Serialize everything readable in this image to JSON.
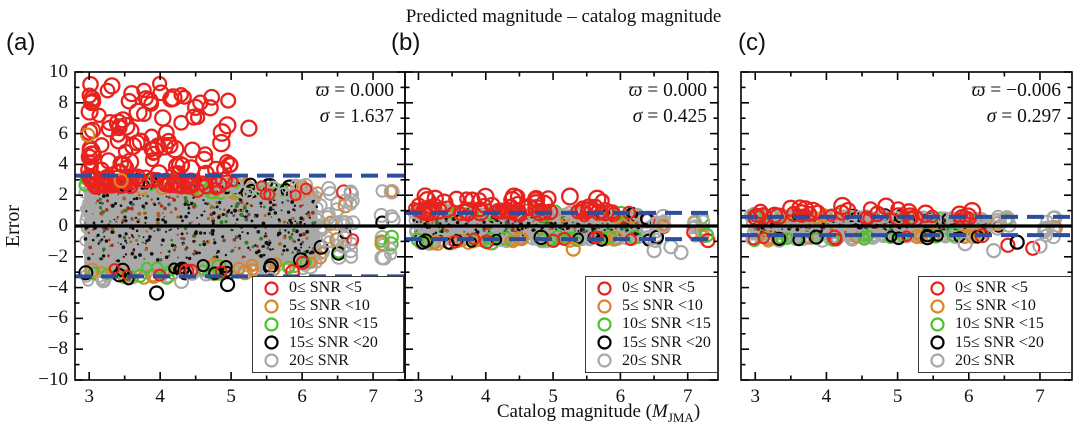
{
  "figure_title": "Predicted magnitude – catalog magnitude",
  "axis": {
    "ylabel": "Error",
    "xlabel": {
      "pre": "Catalog magnitude (",
      "var": "M",
      "sub": "JMA",
      "post": ")"
    }
  },
  "colors": {
    "red": "#e8231d",
    "orange": "#d9862b",
    "green": "#4cc22e",
    "black": "#000000",
    "gray": "#a9a9a9",
    "band": "#a8a8a8",
    "blue_dashed": "#2d4da0",
    "zero_line": "#000000"
  },
  "legend": {
    "position": "lower right",
    "entries": [
      {
        "label": "0≤ SNR <5",
        "color_key": "red"
      },
      {
        "label": "5≤ SNR <10",
        "color_key": "orange"
      },
      {
        "label": "10≤ SNR <15",
        "color_key": "green"
      },
      {
        "label": "15≤ SNR <20",
        "color_key": "black"
      },
      {
        "label": "20≤ SNR",
        "color_key": "gray"
      }
    ]
  },
  "chart_data": [
    {
      "label": "(a)",
      "type": "scatter",
      "xlim": [
        2.8,
        7.45
      ],
      "ylim": [
        -10,
        10
      ],
      "xticks": [
        3,
        4,
        5,
        6,
        7
      ],
      "xticks_minor": [
        3.5,
        4.5,
        5.5,
        6.5
      ],
      "yticks": [
        -10,
        -8,
        -6,
        -4,
        -2,
        0,
        2,
        4,
        6,
        8,
        10
      ],
      "ytick_labels": [
        "−10",
        "−8",
        "−6",
        "−4",
        "−2",
        "0",
        "2",
        "4",
        "6",
        "8",
        "10"
      ],
      "yticks_minor_step": 1,
      "stats": {
        "mean_symbol": "ϖ",
        "mean": "0.000",
        "sd_symbol": "σ",
        "sd": "1.637"
      },
      "zero_line": 0,
      "dashed_lines": [
        3.274,
        -3.274
      ],
      "dashed_note": "±2σ",
      "render": {
        "band": {
          "x0": 2.93,
          "x1": 6.22,
          "top0": 2.85,
          "top1": 2.2,
          "bot0": -3.15,
          "bot1": -2.45,
          "rings": 480,
          "speckles": 480
        },
        "edge_spread": 0.85,
        "edges": [
          {
            "e": "top",
            "c": "orange",
            "n": 30
          },
          {
            "e": "top",
            "c": "green",
            "n": 26
          },
          {
            "e": "top",
            "c": "black",
            "n": 22
          },
          {
            "e": "top",
            "c": "gray",
            "n": 45
          },
          {
            "e": "top",
            "c": "red",
            "n": 16
          },
          {
            "e": "bot",
            "c": "gray",
            "n": 55
          },
          {
            "e": "bot",
            "c": "orange",
            "n": 22
          },
          {
            "e": "bot",
            "c": "green",
            "n": 16
          },
          {
            "e": "bot",
            "c": "black",
            "n": 16
          },
          {
            "e": "bot",
            "c": "red",
            "n": 8
          }
        ],
        "cloud": {
          "color": "red",
          "n": 135,
          "x0": 3.0,
          "xp": 1.6,
          "xs": 2.0,
          "y0": 2.6,
          "yp": 2.0,
          "ys": 6.7
        },
        "cloud_extra": [
          [
            5.25,
            6.35
          ],
          [
            3.32,
            9.1
          ],
          [
            3.6,
            8.6
          ],
          [
            4.15,
            8.25
          ],
          [
            4.5,
            7.7
          ],
          [
            3.05,
            8.1
          ]
        ],
        "columns": {
          "xs": [
            6.28,
            6.38,
            6.5,
            6.6,
            6.7,
            7.13,
            7.26
          ],
          "y0": -2.3,
          "y1": 2.55,
          "n": 9
        },
        "outliers": [
          {
            "x": 3.95,
            "y": -4.35,
            "c": "black"
          },
          {
            "x": 4.95,
            "y": -3.8,
            "c": "black"
          },
          {
            "x": 3.2,
            "y": -3.55,
            "c": "gray"
          },
          {
            "x": 5.55,
            "y": -3.45,
            "c": "gray"
          },
          {
            "x": 4.3,
            "y": -3.6,
            "c": "gray"
          },
          {
            "x": 2.98,
            "y": 5.9,
            "c": "orange"
          },
          {
            "x": 3.45,
            "y": 2.95,
            "c": "orange"
          }
        ]
      }
    },
    {
      "label": "(b)",
      "type": "scatter",
      "xlim": [
        2.8,
        7.45
      ],
      "ylim": [
        -10,
        10
      ],
      "xticks": [
        3,
        4,
        5,
        6,
        7
      ],
      "xticks_minor": [
        3.5,
        4.5,
        5.5,
        6.5
      ],
      "yticks": [
        -10,
        -8,
        -6,
        -4,
        -2,
        0,
        2,
        4,
        6,
        8,
        10
      ],
      "yticks_minor_step": 1,
      "stats": {
        "mean_symbol": "ϖ",
        "mean": "0.000",
        "sd_symbol": "σ",
        "sd": "0.425"
      },
      "zero_line": 0,
      "dashed_lines": [
        0.85,
        -0.85
      ],
      "dashed_note": "±2σ",
      "render": {
        "band": {
          "x0": 2.93,
          "x1": 6.28,
          "top0": 1.02,
          "top1": 0.72,
          "bot0": -1.05,
          "bot1": -0.78,
          "rings": 380,
          "speckles": 300
        },
        "edge_spread": 0.38,
        "edges": [
          {
            "e": "top",
            "c": "orange",
            "n": 22
          },
          {
            "e": "top",
            "c": "green",
            "n": 16
          },
          {
            "e": "top",
            "c": "black",
            "n": 12
          },
          {
            "e": "top",
            "c": "gray",
            "n": 40
          },
          {
            "e": "top",
            "c": "red",
            "n": 10
          },
          {
            "e": "bot",
            "c": "gray",
            "n": 45
          },
          {
            "e": "bot",
            "c": "orange",
            "n": 18
          },
          {
            "e": "bot",
            "c": "green",
            "n": 18
          },
          {
            "e": "bot",
            "c": "black",
            "n": 10
          },
          {
            "e": "bot",
            "c": "red",
            "n": 8
          }
        ],
        "cloud": {
          "color": "red",
          "n": 60,
          "x0": 3.0,
          "xp": 1.2,
          "xs": 2.9,
          "y0": 0.9,
          "yp": 2.2,
          "ys": 1.05
        },
        "cloud_extra": [
          [
            3.1,
            1.95
          ],
          [
            3.25,
            1.8
          ]
        ],
        "columns": {
          "xs": [
            6.4,
            6.52,
            6.64,
            7.1,
            7.22
          ],
          "y0": -0.95,
          "y1": 0.9,
          "n": 7
        },
        "outliers": [
          {
            "x": 5.3,
            "y": -1.5,
            "c": "orange"
          },
          {
            "x": 6.5,
            "y": -1.6,
            "c": "gray"
          },
          {
            "x": 6.9,
            "y": -1.72,
            "c": "gray"
          },
          {
            "x": 7.3,
            "y": -0.95,
            "c": "red"
          },
          {
            "x": 7.28,
            "y": -0.6,
            "c": "green"
          },
          {
            "x": 6.75,
            "y": -1.35,
            "c": "gray"
          }
        ]
      }
    },
    {
      "label": "(c)",
      "type": "scatter",
      "xlim": [
        2.8,
        7.45
      ],
      "ylim": [
        -10,
        10
      ],
      "xticks": [
        3,
        4,
        5,
        6,
        7
      ],
      "xticks_minor": [
        3.5,
        4.5,
        5.5,
        6.5
      ],
      "yticks": [
        -10,
        -8,
        -6,
        -4,
        -2,
        0,
        2,
        4,
        6,
        8,
        10
      ],
      "yticks_minor_step": 1,
      "stats": {
        "mean_symbol": "ϖ",
        "mean": "−0.006",
        "sd_symbol": "σ",
        "sd": "0.297"
      },
      "zero_line": 0,
      "dashed_lines": [
        0.594,
        -0.594
      ],
      "dashed_note": "±2σ",
      "render": {
        "band": {
          "x0": 2.93,
          "x1": 6.3,
          "top0": 0.72,
          "top1": 0.5,
          "bot0": -0.95,
          "bot1": -0.6,
          "rings": 330,
          "speckles": 260
        },
        "edge_spread": 0.3,
        "edges": [
          {
            "e": "top",
            "c": "orange",
            "n": 15
          },
          {
            "e": "top",
            "c": "green",
            "n": 12
          },
          {
            "e": "top",
            "c": "black",
            "n": 10
          },
          {
            "e": "top",
            "c": "gray",
            "n": 35
          },
          {
            "e": "top",
            "c": "red",
            "n": 8
          },
          {
            "e": "bot",
            "c": "gray",
            "n": 40
          },
          {
            "e": "bot",
            "c": "orange",
            "n": 15
          },
          {
            "e": "bot",
            "c": "green",
            "n": 14
          },
          {
            "e": "bot",
            "c": "black",
            "n": 10
          },
          {
            "e": "bot",
            "c": "red",
            "n": 6
          }
        ],
        "cloud": {
          "color": "red",
          "n": 30,
          "x0": 3.0,
          "xp": 1.1,
          "xs": 3.1,
          "y0": 0.5,
          "yp": 2.0,
          "ys": 0.8
        },
        "cloud_extra": [
          [
            3.5,
            1.15
          ],
          [
            4.3,
            1.0
          ]
        ],
        "columns": {
          "xs": [
            6.42,
            6.55,
            7.08,
            7.2
          ],
          "y0": -0.75,
          "y1": 0.65,
          "n": 6
        },
        "outliers": [
          {
            "x": 6.55,
            "y": -1.25,
            "c": "red"
          },
          {
            "x": 6.9,
            "y": -1.45,
            "c": "red"
          },
          {
            "x": 6.35,
            "y": -1.6,
            "c": "gray"
          },
          {
            "x": 7.0,
            "y": -1.3,
            "c": "gray"
          },
          {
            "x": 5.95,
            "y": -1.15,
            "c": "gray"
          },
          {
            "x": 6.68,
            "y": -1.05,
            "c": "black"
          }
        ]
      }
    }
  ]
}
